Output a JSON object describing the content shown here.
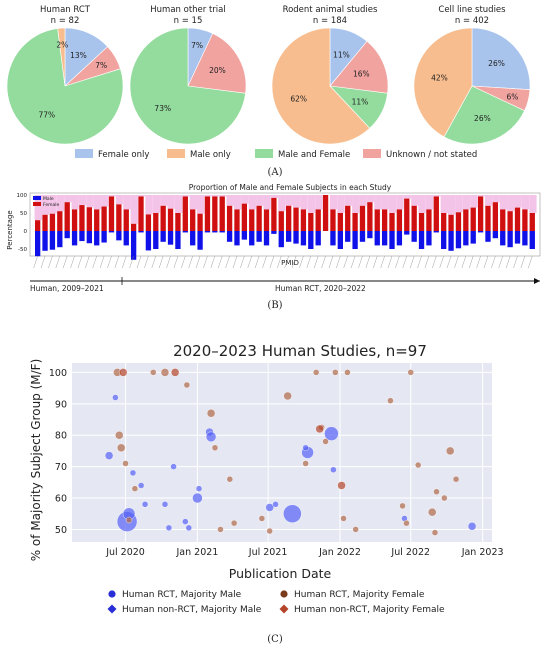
{
  "panelA": {
    "label": "(A)",
    "pies": [
      {
        "title": "Human RCT",
        "n": "n = 82",
        "slices": [
          13,
          7,
          77,
          2
        ],
        "labels": [
          "13%",
          "7%",
          "77%",
          "2%"
        ]
      },
      {
        "title": "Human other trial",
        "n": "n = 15",
        "slices": [
          7,
          20,
          73,
          0
        ],
        "labels": [
          "7%",
          "20%",
          "73%",
          ""
        ]
      },
      {
        "title": "Rodent animal studies",
        "n": "n = 184",
        "slices": [
          11,
          16,
          11,
          62
        ],
        "labels": [
          "11%",
          "16%",
          "11%",
          "62%"
        ]
      },
      {
        "title": "Cell line studies",
        "n": "n = 402",
        "slices": [
          26,
          6,
          26,
          42
        ],
        "labels": [
          "26%",
          "6%",
          "26%",
          "42%"
        ]
      }
    ],
    "slice_order": [
      "Female only",
      "Unknown / not stated",
      "Male and Female",
      "Male only"
    ],
    "legend": [
      {
        "label": "Female only",
        "color": "#a8c3ec"
      },
      {
        "label": "Male only",
        "color": "#f8bd8e"
      },
      {
        "label": "Male and Female",
        "color": "#93dc9d"
      },
      {
        "label": "Unknown / not stated",
        "color": "#f1a3a0"
      }
    ]
  },
  "panelB": {
    "label": "(B)",
    "title": "Proportion of Male and Female Subjects in each Study",
    "ylabel": "Percentage",
    "xlabel": "PMID",
    "legend": [
      {
        "label": "Male",
        "color": "#1010e8"
      },
      {
        "label": "Female",
        "color": "#d01010"
      }
    ],
    "yticks": [
      "100",
      "50",
      "0",
      "-50",
      "-100"
    ],
    "female": [
      30,
      45,
      48,
      55,
      80,
      60,
      72,
      66,
      60,
      68,
      96,
      74,
      60,
      20,
      96,
      46,
      50,
      70,
      62,
      50,
      96,
      60,
      48,
      96,
      96,
      96,
      70,
      60,
      76,
      60,
      70,
      60,
      92,
      55,
      70,
      65,
      60,
      50,
      60,
      100,
      60,
      50,
      70,
      50,
      70,
      80,
      60,
      60,
      50,
      60,
      90,
      70,
      50,
      60,
      96,
      50,
      45,
      52,
      60,
      65,
      96,
      70,
      80,
      60,
      55,
      65,
      60,
      50
    ],
    "male": [
      -70,
      -55,
      -52,
      -45,
      -20,
      -40,
      -28,
      -34,
      -40,
      -32,
      -4,
      -26,
      -40,
      -80,
      -4,
      -54,
      -50,
      -30,
      -38,
      -50,
      -4,
      -40,
      -52,
      -4,
      -4,
      -4,
      -30,
      -40,
      -24,
      -40,
      -30,
      -40,
      -8,
      -45,
      -30,
      -35,
      -40,
      -50,
      -40,
      0,
      -40,
      -50,
      -30,
      -50,
      -30,
      -20,
      -40,
      -40,
      -50,
      -40,
      -10,
      -30,
      -50,
      -40,
      -4,
      -50,
      -55,
      -48,
      -40,
      -35,
      -4,
      -30,
      -20,
      -40,
      -45,
      -35,
      -40,
      -50
    ],
    "timeline_left": "Human, 2009–2021",
    "timeline_right": "Human RCT, 2020–2022"
  },
  "panelC": {
    "label": "(C)",
    "chart_data": {
      "type": "scatter",
      "title": "2020–2023 Human Studies, n=97",
      "xlabel": "Publication Date",
      "ylabel": "% of Majority Subject Group (M/F)",
      "x_ticks": [
        "Jul 2020",
        "Jan 2021",
        "Jul 2021",
        "Jan 2022",
        "Jul 2022",
        "Jan 2023"
      ],
      "y_ticks": [
        50,
        60,
        70,
        80,
        90,
        100
      ],
      "xlim": [
        "2020-02-15",
        "2023-01-25"
      ],
      "ylim": [
        46,
        103
      ],
      "series": [
        {
          "name": "Human RCT, Majority Male",
          "color": "#5661f5",
          "points": [
            [
              "2020-05-20",
              73.5,
              4
            ],
            [
              "2020-06-05",
              92,
              3
            ],
            [
              "2020-07-05",
              52.5,
              10
            ],
            [
              "2020-07-10",
              55,
              6
            ],
            [
              "2020-07-20",
              68,
              3
            ],
            [
              "2020-08-10",
              64,
              3
            ],
            [
              "2020-08-20",
              58,
              3
            ],
            [
              "2020-10-10",
              58,
              3
            ],
            [
              "2020-10-20",
              50.5,
              3
            ],
            [
              "2020-11-01",
              70,
              3
            ],
            [
              "2020-12-01",
              52.5,
              3
            ],
            [
              "2020-12-10",
              50.5,
              3
            ],
            [
              "2021-01-01",
              60,
              5
            ],
            [
              "2021-01-05",
              63,
              3
            ],
            [
              "2021-02-01",
              81,
              4
            ],
            [
              "2021-02-05",
              79.5,
              5
            ],
            [
              "2021-07-05",
              57,
              4
            ],
            [
              "2021-07-20",
              58,
              3
            ],
            [
              "2021-09-01",
              55,
              9
            ],
            [
              "2021-10-10",
              74.5,
              6
            ],
            [
              "2021-12-10",
              80.5,
              7
            ],
            [
              "2021-12-15",
              69,
              3
            ],
            [
              "2021-10-05",
              76,
              3
            ],
            [
              "2022-06-15",
              53.5,
              3
            ],
            [
              "2022-12-05",
              51,
              4
            ]
          ]
        },
        {
          "name": "Human RCT, Majority Female",
          "color": "#b06a48",
          "points": [
            [
              "2020-06-10",
              100,
              4
            ],
            [
              "2020-06-15",
              80,
              4
            ],
            [
              "2020-06-20",
              76,
              4
            ],
            [
              "2020-07-01",
              71,
              3
            ],
            [
              "2020-07-10",
              53,
              3
            ],
            [
              "2020-07-25",
              63,
              3
            ],
            [
              "2020-09-10",
              100,
              3
            ],
            [
              "2020-10-10",
              100,
              4
            ],
            [
              "2020-12-05",
              96,
              3
            ],
            [
              "2021-02-05",
              87,
              4
            ],
            [
              "2021-02-15",
              76,
              3
            ],
            [
              "2021-03-01",
              50,
              3
            ],
            [
              "2021-03-25",
              66,
              3
            ],
            [
              "2021-04-05",
              52,
              3
            ],
            [
              "2021-06-15",
              53.5,
              3
            ],
            [
              "2021-07-05",
              49.5,
              3
            ],
            [
              "2021-08-20",
              92.5,
              4
            ],
            [
              "2021-10-05",
              71,
              3
            ],
            [
              "2021-11-01",
              100,
              3
            ],
            [
              "2021-11-15",
              82.5,
              3
            ],
            [
              "2021-11-25",
              78,
              3
            ],
            [
              "2021-12-20",
              100,
              3
            ],
            [
              "2022-01-10",
              53.5,
              3
            ],
            [
              "2022-01-20",
              100,
              3
            ],
            [
              "2022-02-10",
              50,
              3
            ],
            [
              "2022-05-10",
              91,
              3
            ],
            [
              "2022-06-10",
              57.5,
              3
            ],
            [
              "2022-06-20",
              52,
              3
            ],
            [
              "2022-07-01",
              100,
              3
            ],
            [
              "2022-07-20",
              70.5,
              3
            ],
            [
              "2022-08-25",
              55.5,
              4
            ],
            [
              "2022-09-05",
              62,
              3
            ],
            [
              "2022-09-25",
              60,
              3
            ],
            [
              "2022-10-10",
              75,
              4
            ],
            [
              "2022-10-25",
              66,
              3
            ],
            [
              "2022-09-01",
              49,
              3
            ]
          ]
        },
        {
          "name": "Human non-RCT, Majority Male",
          "color": "#2a2ed6",
          "points": []
        },
        {
          "name": "Human non-RCT, Majority Female",
          "color": "#b5452a",
          "points": [
            [
              "2020-06-25",
              100,
              4
            ],
            [
              "2020-11-05",
              100,
              4
            ],
            [
              "2021-11-10",
              82,
              4
            ],
            [
              "2022-01-05",
              64,
              4
            ]
          ]
        }
      ],
      "legend": [
        {
          "label": "Human RCT, Majority Male",
          "color": "#2a2ed6",
          "shape": "circle"
        },
        {
          "label": "Human RCT, Majority Female",
          "color": "#7a3a1c",
          "shape": "circle"
        },
        {
          "label": "Human non-RCT, Majority Male",
          "color": "#2a2ed6",
          "shape": "diamond"
        },
        {
          "label": "Human non-RCT, Majority Female",
          "color": "#b5452a",
          "shape": "diamond"
        }
      ]
    }
  }
}
